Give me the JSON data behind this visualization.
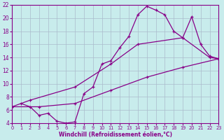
{
  "xlabel": "Windchill (Refroidissement éolien,°C)",
  "bg_color": "#c8ecec",
  "line_color": "#880088",
  "grid_color": "#aabbcc",
  "xlim": [
    0,
    23
  ],
  "ylim": [
    4,
    22
  ],
  "xticks": [
    0,
    1,
    2,
    3,
    4,
    5,
    6,
    7,
    8,
    9,
    10,
    11,
    12,
    13,
    14,
    15,
    16,
    17,
    18,
    19,
    20,
    21,
    22,
    23
  ],
  "yticks": [
    4,
    6,
    8,
    10,
    12,
    14,
    16,
    18,
    20,
    22
  ],
  "line1_x": [
    1,
    2,
    3,
    4,
    5,
    6,
    7,
    8,
    9,
    10,
    11,
    12,
    13,
    14,
    15,
    16,
    17,
    18,
    19,
    20,
    21,
    22,
    23
  ],
  "line1_y": [
    7.0,
    6.5,
    5.2,
    5.5,
    4.3,
    4.0,
    4.2,
    8.5,
    9.5,
    13.0,
    13.5,
    15.5,
    17.2,
    20.5,
    21.8,
    21.2,
    20.5,
    18.0,
    17.0,
    20.2,
    16.0,
    14.2,
    13.8
  ],
  "line2_x": [
    0,
    2,
    7,
    11,
    14,
    19,
    22,
    23
  ],
  "line2_y": [
    6.5,
    7.5,
    9.5,
    13.0,
    16.0,
    17.0,
    14.0,
    13.8
  ],
  "line3_x": [
    0,
    3,
    7,
    11,
    15,
    19,
    23
  ],
  "line3_y": [
    6.5,
    6.5,
    7.0,
    9.0,
    11.0,
    12.5,
    13.8
  ]
}
